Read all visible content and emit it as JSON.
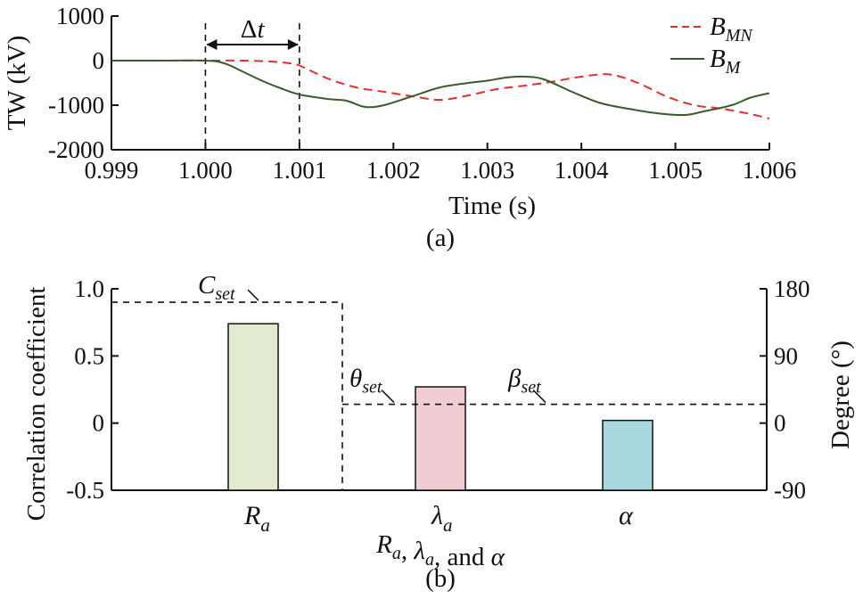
{
  "chart_data": [
    {
      "type": "line",
      "caption": "(a)",
      "xlabel": "Time (s)",
      "ylabel": "TW (kV)",
      "xlim": [
        0.999,
        1.006
      ],
      "ylim": [
        -2000,
        1000
      ],
      "xticks": [
        "0.999",
        "1.000",
        "1.001",
        "1.002",
        "1.003",
        "1.004",
        "1.005",
        "1.006"
      ],
      "yticks": [
        "1000",
        "0",
        "-1000",
        "-2000"
      ],
      "legend_position": "top-right",
      "annotation": {
        "label": "Δt",
        "x_start": 1.0,
        "x_end": 1.001
      },
      "series": [
        {
          "name_base": "B",
          "name_sub": "MN",
          "color": "#e0312f",
          "style": "dashed",
          "x": [
            0.999,
            0.9995,
            1.0,
            1.0004,
            1.0007,
            1.0009,
            1.001,
            1.0013,
            1.0016,
            1.0019,
            1.0022,
            1.0025,
            1.0028,
            1.0031,
            1.0034,
            1.0037,
            1.004,
            1.0043,
            1.0046,
            1.0049,
            1.0052,
            1.0055,
            1.0058,
            1.006
          ],
          "y": [
            0,
            0,
            0,
            0,
            -20,
            -60,
            -110,
            -400,
            -600,
            -700,
            -800,
            -880,
            -780,
            -640,
            -560,
            -470,
            -360,
            -310,
            -500,
            -800,
            -1000,
            -1080,
            -1200,
            -1300
          ]
        },
        {
          "name_base": "B",
          "name_sub": "M",
          "color": "#3d5a2c",
          "style": "solid",
          "x": [
            0.999,
            0.9995,
            1.0,
            1.0002,
            1.0004,
            1.0006,
            1.0008,
            1.001,
            1.0013,
            1.0015,
            1.0017,
            1.0019,
            1.0022,
            1.0025,
            1.0028,
            1.003,
            1.0032,
            1.0034,
            1.0036,
            1.0039,
            1.0042,
            1.0045,
            1.0048,
            1.0051,
            1.0053,
            1.0056,
            1.0058,
            1.006
          ],
          "y": [
            0,
            0,
            0,
            -60,
            -250,
            -450,
            -620,
            -760,
            -860,
            -900,
            -1040,
            -1000,
            -800,
            -600,
            -500,
            -450,
            -380,
            -360,
            -420,
            -700,
            -950,
            -1080,
            -1180,
            -1220,
            -1140,
            -1000,
            -830,
            -730
          ]
        }
      ]
    },
    {
      "type": "bar",
      "caption": "(b)",
      "ylabel": "Correlation coefficient",
      "y2label": "Degree (°)",
      "xlabel_parts": [
        {
          "text": "R",
          "sub": "a",
          "italic": true
        },
        {
          "text": ", ",
          "italic": false
        },
        {
          "text": "λ",
          "sub": "a",
          "italic": true
        },
        {
          "text": ", and ",
          "italic": false
        },
        {
          "text": "α",
          "italic": true
        }
      ],
      "ylim": [
        -0.5,
        1.0
      ],
      "yticks": [
        "1.0",
        "0.5",
        "0",
        "-0.5"
      ],
      "y2lim": [
        -90,
        180
      ],
      "y2ticks": [
        "180",
        "90",
        "0",
        "-90"
      ],
      "categories": [
        {
          "label": "R",
          "sub": "a",
          "value": 0.74,
          "color": "#e2ebcf"
        },
        {
          "label": "λ",
          "sub": "a",
          "value": 0.27,
          "color": "#f0ccd3"
        },
        {
          "label": "α",
          "sub": "",
          "value": 0.02,
          "color": "#aad8df"
        }
      ],
      "thresholds": [
        {
          "label": "C",
          "sub": "set",
          "value": 0.9,
          "axis": "left"
        },
        {
          "label": "θ",
          "sub": "set",
          "value": 0.14,
          "axis": "left"
        },
        {
          "label": "β",
          "sub": "set",
          "value": 0.14,
          "axis": "left"
        }
      ]
    }
  ]
}
